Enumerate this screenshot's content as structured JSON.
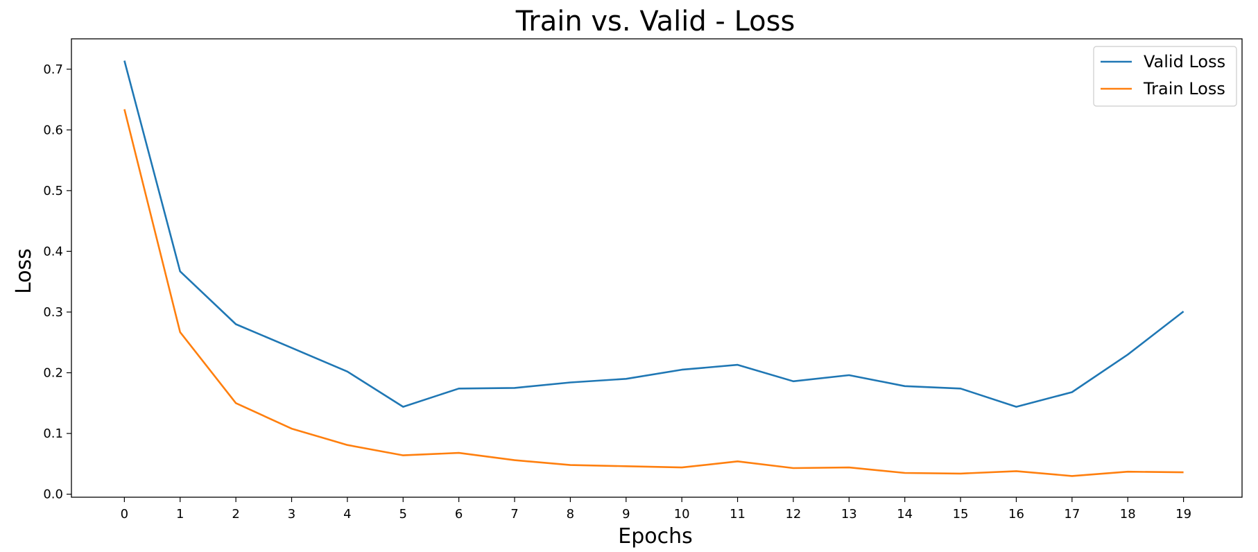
{
  "chart_data": {
    "type": "line",
    "title": "Train vs. Valid - Loss",
    "xlabel": "Epochs",
    "ylabel": "Loss",
    "x": [
      0,
      1,
      2,
      3,
      4,
      5,
      6,
      7,
      8,
      9,
      10,
      11,
      12,
      13,
      14,
      15,
      16,
      17,
      18,
      19
    ],
    "xlim": [
      -0.95,
      20.05
    ],
    "ylim": [
      -0.005,
      0.75
    ],
    "yticks": [
      0.0,
      0.1,
      0.2,
      0.3,
      0.4,
      0.5,
      0.6,
      0.7
    ],
    "ytick_labels": [
      "0.0",
      "0.1",
      "0.2",
      "0.3",
      "0.4",
      "0.5",
      "0.6",
      "0.7"
    ],
    "xtick_labels": [
      "0",
      "1",
      "2",
      "3",
      "4",
      "5",
      "6",
      "7",
      "8",
      "9",
      "10",
      "11",
      "12",
      "13",
      "14",
      "15",
      "16",
      "17",
      "18",
      "19"
    ],
    "grid": false,
    "legend_position": "top-right",
    "series": [
      {
        "name": "Valid Loss",
        "color": "#1f77b4",
        "values": [
          0.714,
          0.367,
          0.28,
          0.241,
          0.202,
          0.144,
          0.174,
          0.175,
          0.184,
          0.19,
          0.205,
          0.213,
          0.186,
          0.196,
          0.178,
          0.174,
          0.144,
          0.168,
          0.23,
          0.301
        ]
      },
      {
        "name": "Train Loss",
        "color": "#ff7f0e",
        "values": [
          0.634,
          0.267,
          0.15,
          0.108,
          0.081,
          0.064,
          0.068,
          0.056,
          0.048,
          0.046,
          0.044,
          0.054,
          0.043,
          0.044,
          0.035,
          0.034,
          0.038,
          0.03,
          0.037,
          0.036
        ]
      }
    ]
  }
}
